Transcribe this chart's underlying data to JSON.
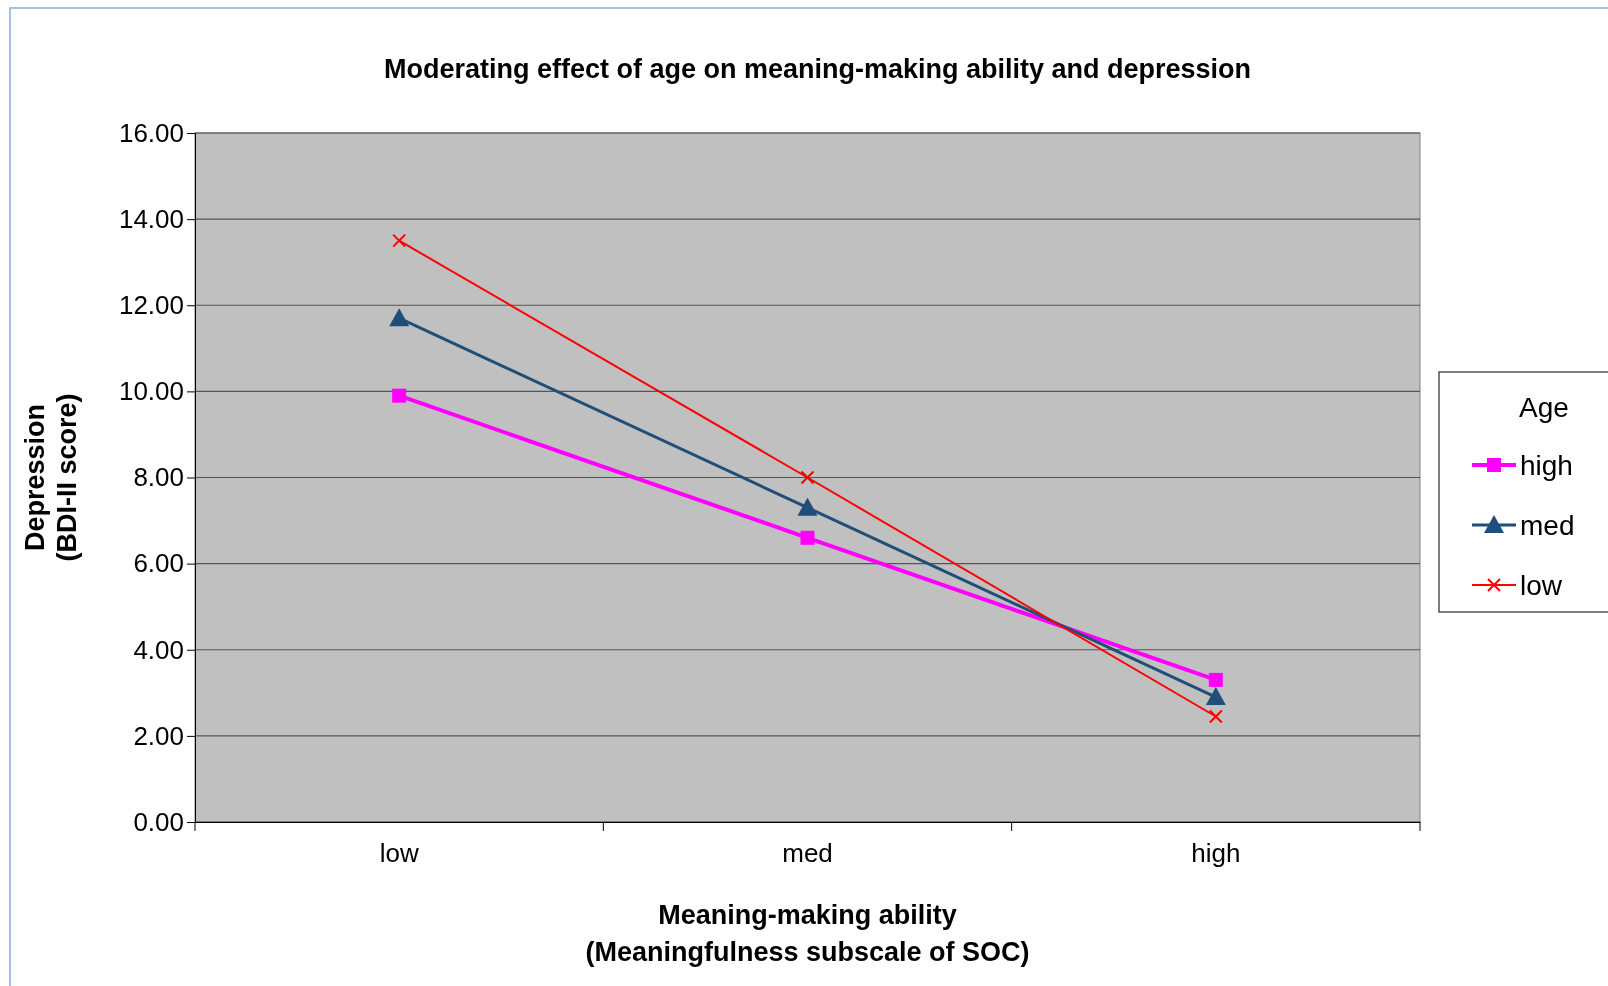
{
  "chart_data": {
    "type": "line",
    "title": "Moderating effect of age on meaning-making ability and depression",
    "xlabel": "Meaning-making ability\n(Meaningfulness subscale of SOC)",
    "ylabel": "Depression\n(BDI-II score)",
    "legend_title": "Age",
    "categories": [
      "low",
      "med",
      "high"
    ],
    "series": [
      {
        "name": "high",
        "color": "#ff00ff",
        "marker": "square",
        "values": [
          9.9,
          6.6,
          3.3
        ]
      },
      {
        "name": "med",
        "color": "#1f4e79",
        "marker": "triangle",
        "values": [
          11.7,
          7.3,
          2.9
        ]
      },
      {
        "name": "low",
        "color": "#ff0000",
        "marker": "cross",
        "values": [
          13.5,
          8.0,
          2.45
        ]
      }
    ],
    "ylim": [
      0,
      16
    ],
    "yticks": [
      {
        "value": 0,
        "label": "0.00"
      },
      {
        "value": 2,
        "label": "2.00"
      },
      {
        "value": 4,
        "label": "4.00"
      },
      {
        "value": 6,
        "label": "6.00"
      },
      {
        "value": 8,
        "label": "8.00"
      },
      {
        "value": 10,
        "label": "10.00"
      },
      {
        "value": 12,
        "label": "12.00"
      },
      {
        "value": 14,
        "label": "14.00"
      },
      {
        "value": 16,
        "label": "16.00"
      }
    ],
    "grid": "y",
    "legend": "right"
  }
}
